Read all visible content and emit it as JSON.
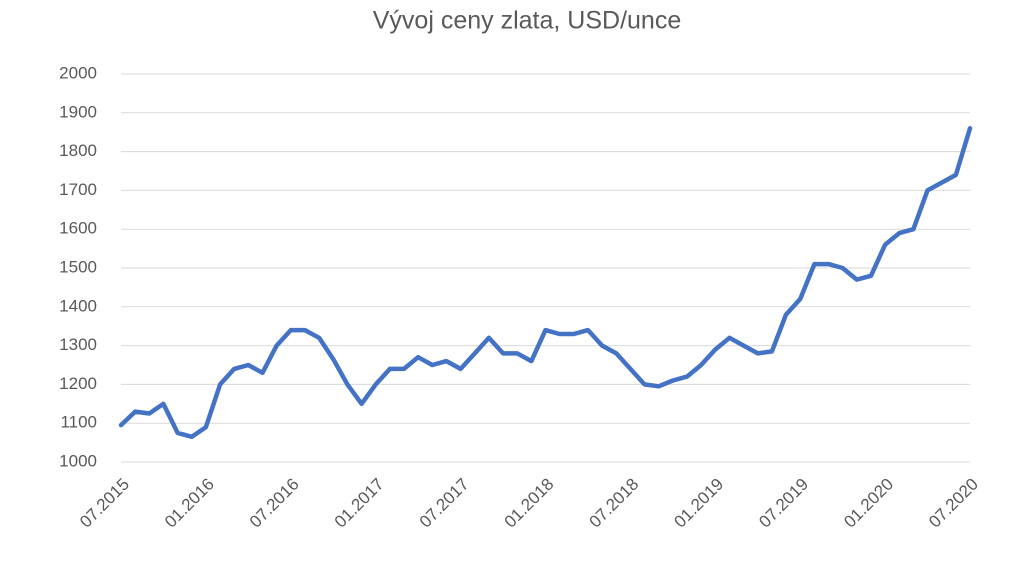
{
  "chart_data": {
    "type": "line",
    "title": "Vývoj ceny zlata, USD/unce",
    "categories": [
      "07.2015",
      null,
      null,
      null,
      null,
      null,
      "01.2016",
      null,
      null,
      null,
      null,
      null,
      "07.2016",
      null,
      null,
      null,
      null,
      null,
      "01.2017",
      null,
      null,
      null,
      null,
      null,
      "07.2017",
      null,
      null,
      null,
      null,
      null,
      "01.2018",
      null,
      null,
      null,
      null,
      null,
      "07.2018",
      null,
      null,
      null,
      null,
      null,
      "01.2019",
      null,
      null,
      null,
      null,
      null,
      "07.2019",
      null,
      null,
      null,
      null,
      null,
      "01.2020",
      null,
      null,
      null,
      null,
      null,
      "07.2020"
    ],
    "series": [
      {
        "color": "#4472c4",
        "values": [
          1095,
          1130,
          1125,
          1150,
          1075,
          1065,
          1090,
          1200,
          1240,
          1250,
          1230,
          1300,
          1340,
          1340,
          1320,
          1265,
          1200,
          1150,
          1200,
          1240,
          1240,
          1270,
          1250,
          1260,
          1240,
          1280,
          1320,
          1280,
          1280,
          1260,
          1340,
          1330,
          1330,
          1340,
          1300,
          1280,
          1240,
          1200,
          1195,
          1210,
          1220,
          1250,
          1290,
          1320,
          1300,
          1280,
          1285,
          1380,
          1420,
          1510,
          1510,
          1500,
          1470,
          1480,
          1560,
          1590,
          1600,
          1700,
          1720,
          1740,
          1860
        ]
      }
    ],
    "ylim": [
      1000,
      2000
    ],
    "yticks": [
      1000,
      1100,
      1200,
      1300,
      1400,
      1500,
      1600,
      1700,
      1800,
      1900,
      2000
    ],
    "grid": true
  }
}
